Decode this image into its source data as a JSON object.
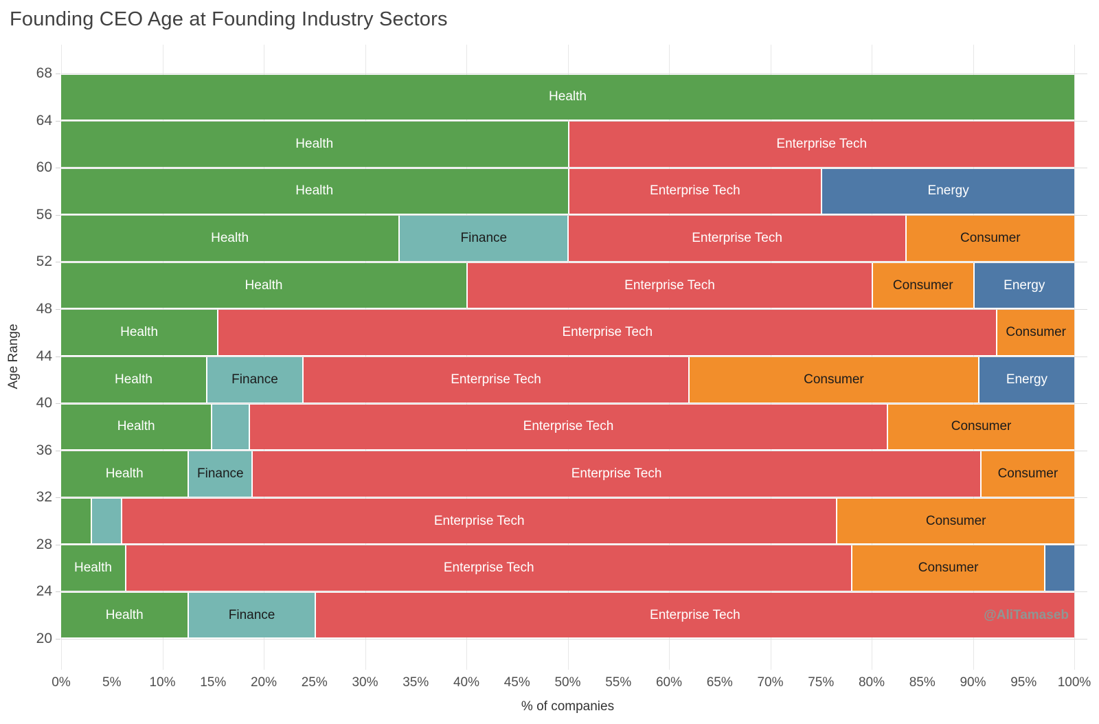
{
  "page": {
    "watermark": "@AliTamaseb"
  },
  "chart_data": {
    "type": "bar",
    "subtype": "horizontal-stacked-100percent-mosaic",
    "title": "Founding CEO Age at Founding Industry Sectors",
    "xlabel": "% of companies",
    "ylabel": "Age Range",
    "x_range_pct": [
      0,
      100
    ],
    "x_tick_step_pct": 5,
    "x_gridline_step_pct": 10,
    "x_tick_suffix": "%",
    "y_axis_ages": [
      68,
      64,
      60,
      56,
      52,
      48,
      44,
      40,
      36,
      32,
      28,
      24,
      20
    ],
    "grid": "on",
    "legend_position": "none-labels-inline",
    "sector_colors": {
      "Health": "#59A14F",
      "Finance": "#76B7B2",
      "Enterprise Tech": "#E15759",
      "Consumer": "#F28E2B",
      "Energy": "#4E79A7"
    },
    "sector_label_text_colors": {
      "Health": "#ffffff",
      "Finance": "#1b1b1b",
      "Enterprise Tech": "#ffffff",
      "Consumer": "#1b1b1b",
      "Energy": "#ffffff"
    },
    "age_bands": [
      {
        "age_range": "64-68",
        "segments": [
          {
            "sector": "Health",
            "pct": 100,
            "label_shown": true
          }
        ]
      },
      {
        "age_range": "60-64",
        "segments": [
          {
            "sector": "Health",
            "pct": 50,
            "label_shown": true
          },
          {
            "sector": "Enterprise Tech",
            "pct": 50,
            "label_shown": true
          }
        ]
      },
      {
        "age_range": "56-60",
        "segments": [
          {
            "sector": "Health",
            "pct": 50,
            "label_shown": true
          },
          {
            "sector": "Enterprise Tech",
            "pct": 25,
            "label_shown": true
          },
          {
            "sector": "Energy",
            "pct": 25,
            "label_shown": true
          }
        ]
      },
      {
        "age_range": "52-56",
        "segments": [
          {
            "sector": "Health",
            "pct": 33.3,
            "label_shown": true
          },
          {
            "sector": "Finance",
            "pct": 16.7,
            "label_shown": true
          },
          {
            "sector": "Enterprise Tech",
            "pct": 33.3,
            "label_shown": true
          },
          {
            "sector": "Consumer",
            "pct": 16.7,
            "label_shown": true
          }
        ]
      },
      {
        "age_range": "48-52",
        "segments": [
          {
            "sector": "Health",
            "pct": 40,
            "label_shown": true
          },
          {
            "sector": "Enterprise Tech",
            "pct": 40,
            "label_shown": true
          },
          {
            "sector": "Consumer",
            "pct": 10,
            "label_shown": true
          },
          {
            "sector": "Energy",
            "pct": 10,
            "label_shown": true
          }
        ]
      },
      {
        "age_range": "44-48",
        "segments": [
          {
            "sector": "Health",
            "pct": 15.4,
            "label_shown": true
          },
          {
            "sector": "Enterprise Tech",
            "pct": 76.9,
            "label_shown": true
          },
          {
            "sector": "Consumer",
            "pct": 7.7,
            "label_shown": true
          }
        ]
      },
      {
        "age_range": "40-44",
        "segments": [
          {
            "sector": "Health",
            "pct": 14.3,
            "label_shown": true
          },
          {
            "sector": "Finance",
            "pct": 9.5,
            "label_shown": true
          },
          {
            "sector": "Enterprise Tech",
            "pct": 38.1,
            "label_shown": true
          },
          {
            "sector": "Consumer",
            "pct": 28.6,
            "label_shown": true
          },
          {
            "sector": "Energy",
            "pct": 9.5,
            "label_shown": true
          }
        ]
      },
      {
        "age_range": "36-40",
        "segments": [
          {
            "sector": "Health",
            "pct": 14.8,
            "label_shown": true
          },
          {
            "sector": "Finance",
            "pct": 3.7,
            "label_shown": false
          },
          {
            "sector": "Enterprise Tech",
            "pct": 63.0,
            "label_shown": true
          },
          {
            "sector": "Consumer",
            "pct": 18.5,
            "label_shown": true
          }
        ]
      },
      {
        "age_range": "32-36",
        "segments": [
          {
            "sector": "Health",
            "pct": 12.5,
            "label_shown": true
          },
          {
            "sector": "Finance",
            "pct": 6.3,
            "label_shown": true
          },
          {
            "sector": "Enterprise Tech",
            "pct": 71.9,
            "label_shown": true
          },
          {
            "sector": "Consumer",
            "pct": 9.3,
            "label_shown": true
          }
        ]
      },
      {
        "age_range": "28-32",
        "segments": [
          {
            "sector": "Health",
            "pct": 2.9,
            "label_shown": false
          },
          {
            "sector": "Finance",
            "pct": 3.0,
            "label_shown": false
          },
          {
            "sector": "Enterprise Tech",
            "pct": 70.6,
            "label_shown": true
          },
          {
            "sector": "Consumer",
            "pct": 23.5,
            "label_shown": true
          }
        ]
      },
      {
        "age_range": "24-28",
        "segments": [
          {
            "sector": "Health",
            "pct": 6.3,
            "label_shown": true
          },
          {
            "sector": "Enterprise Tech",
            "pct": 71.7,
            "label_shown": true
          },
          {
            "sector": "Consumer",
            "pct": 19.0,
            "label_shown": true
          },
          {
            "sector": "Energy",
            "pct": 3.0,
            "label_shown": false
          }
        ]
      },
      {
        "age_range": "20-24",
        "segments": [
          {
            "sector": "Health",
            "pct": 12.5,
            "label_shown": true
          },
          {
            "sector": "Finance",
            "pct": 12.5,
            "label_shown": true
          },
          {
            "sector": "Enterprise Tech",
            "pct": 75,
            "label_shown": true
          }
        ]
      }
    ]
  }
}
